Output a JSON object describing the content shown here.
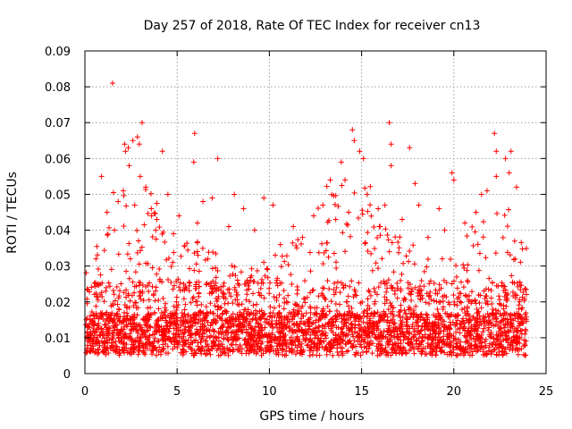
{
  "chart_data": {
    "type": "scatter",
    "title": "Day 257 of 2018, Rate Of TEC Index for receiver cn13",
    "xlabel": "GPS time / hours",
    "ylabel": "ROTI / TECUs",
    "xlim": [
      0,
      25
    ],
    "ylim": [
      0,
      0.09
    ],
    "xticks": [
      "0",
      "5",
      "10",
      "15",
      "20",
      "25"
    ],
    "yticks": [
      "0",
      "0.01",
      "0.02",
      "0.03",
      "0.04",
      "0.05",
      "0.06",
      "0.07",
      "0.08",
      "0.09"
    ],
    "grid": true,
    "marker": "plus",
    "color": "#ff0000",
    "series": [
      {
        "name": "ROTI",
        "points": [
          [
            1.5,
            0.081
          ],
          [
            2.15,
            0.064
          ],
          [
            2.2,
            0.062
          ],
          [
            2.35,
            0.063
          ],
          [
            2.6,
            0.065
          ],
          [
            2.85,
            0.066
          ],
          [
            2.95,
            0.064
          ],
          [
            3.1,
            0.07
          ],
          [
            3.0,
            0.055
          ],
          [
            4.2,
            0.062
          ],
          [
            5.95,
            0.067
          ],
          [
            5.9,
            0.059
          ],
          [
            7.2,
            0.06
          ],
          [
            0.9,
            0.055
          ],
          [
            1.2,
            0.045
          ],
          [
            1.8,
            0.048
          ],
          [
            2.4,
            0.058
          ],
          [
            3.3,
            0.052
          ],
          [
            3.6,
            0.046
          ],
          [
            4.5,
            0.05
          ],
          [
            5.1,
            0.044
          ],
          [
            6.4,
            0.048
          ],
          [
            6.9,
            0.049
          ],
          [
            8.1,
            0.05
          ],
          [
            8.6,
            0.046
          ],
          [
            9.7,
            0.049
          ],
          [
            10.2,
            0.047
          ],
          [
            11.3,
            0.041
          ],
          [
            12.4,
            0.044
          ],
          [
            12.9,
            0.047
          ],
          [
            13.3,
            0.054
          ],
          [
            13.9,
            0.059
          ],
          [
            14.1,
            0.054
          ],
          [
            14.5,
            0.068
          ],
          [
            14.6,
            0.065
          ],
          [
            14.9,
            0.062
          ],
          [
            15.1,
            0.06
          ],
          [
            15.3,
            0.05
          ],
          [
            15.9,
            0.046
          ],
          [
            16.5,
            0.07
          ],
          [
            16.6,
            0.064
          ],
          [
            16.6,
            0.058
          ],
          [
            17.6,
            0.063
          ],
          [
            17.9,
            0.053
          ],
          [
            18.1,
            0.047
          ],
          [
            19.2,
            0.046
          ],
          [
            19.9,
            0.056
          ],
          [
            20.0,
            0.054
          ],
          [
            20.6,
            0.042
          ],
          [
            21.5,
            0.05
          ],
          [
            22.2,
            0.067
          ],
          [
            22.3,
            0.062
          ],
          [
            22.3,
            0.055
          ],
          [
            22.8,
            0.06
          ],
          [
            23.1,
            0.062
          ],
          [
            23.4,
            0.052
          ],
          [
            23.0,
            0.056
          ],
          [
            21.8,
            0.051
          ],
          [
            21.2,
            0.045
          ],
          [
            19.5,
            0.04
          ],
          [
            18.6,
            0.038
          ],
          [
            17.2,
            0.043
          ],
          [
            16.0,
            0.041
          ],
          [
            14.3,
            0.045
          ],
          [
            13.6,
            0.043
          ],
          [
            11.8,
            0.038
          ],
          [
            10.6,
            0.036
          ],
          [
            9.2,
            0.04
          ],
          [
            7.8,
            0.041
          ],
          [
            6.1,
            0.042
          ],
          [
            4.8,
            0.039
          ],
          [
            3.9,
            0.043
          ],
          [
            2.7,
            0.047
          ],
          [
            1.6,
            0.04
          ],
          [
            0.6,
            0.032
          ]
        ]
      }
    ]
  }
}
